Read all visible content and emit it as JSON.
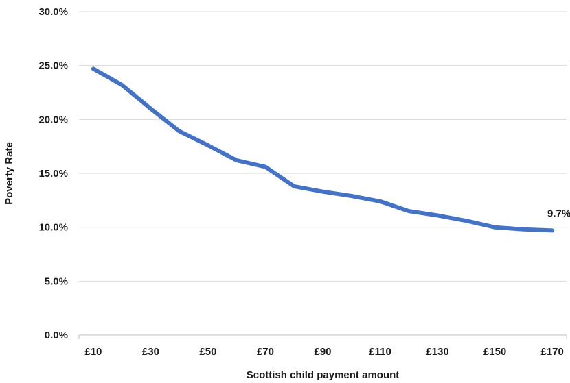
{
  "chart_data": {
    "type": "line",
    "title": "",
    "xlabel": "Scottish child payment amount",
    "ylabel": "Poverty Rate",
    "x": [
      10,
      20,
      30,
      40,
      50,
      60,
      70,
      80,
      90,
      100,
      110,
      120,
      130,
      140,
      150,
      160,
      170
    ],
    "x_tick_labels": [
      "£10",
      "£30",
      "£50",
      "£70",
      "£90",
      "£110",
      "£130",
      "£150",
      "£170"
    ],
    "x_tick_values": [
      10,
      30,
      50,
      70,
      90,
      110,
      130,
      150,
      170
    ],
    "xlim": [
      5,
      175
    ],
    "y_tick_labels": [
      "0.0%",
      "5.0%",
      "10.0%",
      "15.0%",
      "20.0%",
      "25.0%",
      "30.0%"
    ],
    "y_tick_values": [
      0,
      5,
      10,
      15,
      20,
      25,
      30
    ],
    "ylim": [
      0,
      30
    ],
    "grid": true,
    "series": [
      {
        "values": [
          24.7,
          23.2,
          21.0,
          18.9,
          17.6,
          16.2,
          15.6,
          13.8,
          13.3,
          12.9,
          12.4,
          11.5,
          11.1,
          10.6,
          10.0,
          9.8,
          9.7
        ],
        "color": "#4472c4"
      }
    ],
    "annotations": [
      {
        "text": "9.7%",
        "x": 170,
        "y": 9.7
      }
    ]
  }
}
